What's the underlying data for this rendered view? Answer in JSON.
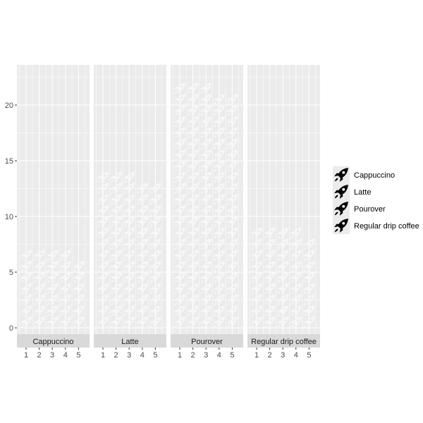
{
  "chart_data": {
    "type": "waffle",
    "facet_by": "drink",
    "facets": [
      "Cappuccino",
      "Latte",
      "Pourover",
      "Regular drip coffee"
    ],
    "x_ticks": [
      "1",
      "2",
      "3",
      "4",
      "5"
    ],
    "y_ticks": [
      "0",
      "5",
      "10",
      "15",
      "20"
    ],
    "ylim": [
      0,
      23.5
    ],
    "unit_per_icon": 1,
    "series": [
      {
        "name": "Cappuccino",
        "values": [
          7,
          7,
          7,
          7,
          6
        ]
      },
      {
        "name": "Latte",
        "values": [
          14,
          14,
          14,
          13,
          13
        ]
      },
      {
        "name": "Pourover",
        "values": [
          22,
          22,
          22,
          21,
          21
        ]
      },
      {
        "name": "Regular drip coffee",
        "values": [
          9,
          9,
          9,
          9,
          8
        ]
      }
    ],
    "legend": {
      "position": "right",
      "icon": "rocket-icon",
      "entries": [
        "Cappuccino",
        "Latte",
        "Pourover",
        "Regular drip coffee"
      ]
    },
    "grid": true,
    "colors": {
      "panel_bg": "#ebebeb",
      "grid": "#ffffff",
      "strip_bg": "#d9d9d9",
      "icon_fill": "#f7f7f7",
      "legend_icon": "#000000",
      "axis_text": "#4d4d4d"
    }
  }
}
